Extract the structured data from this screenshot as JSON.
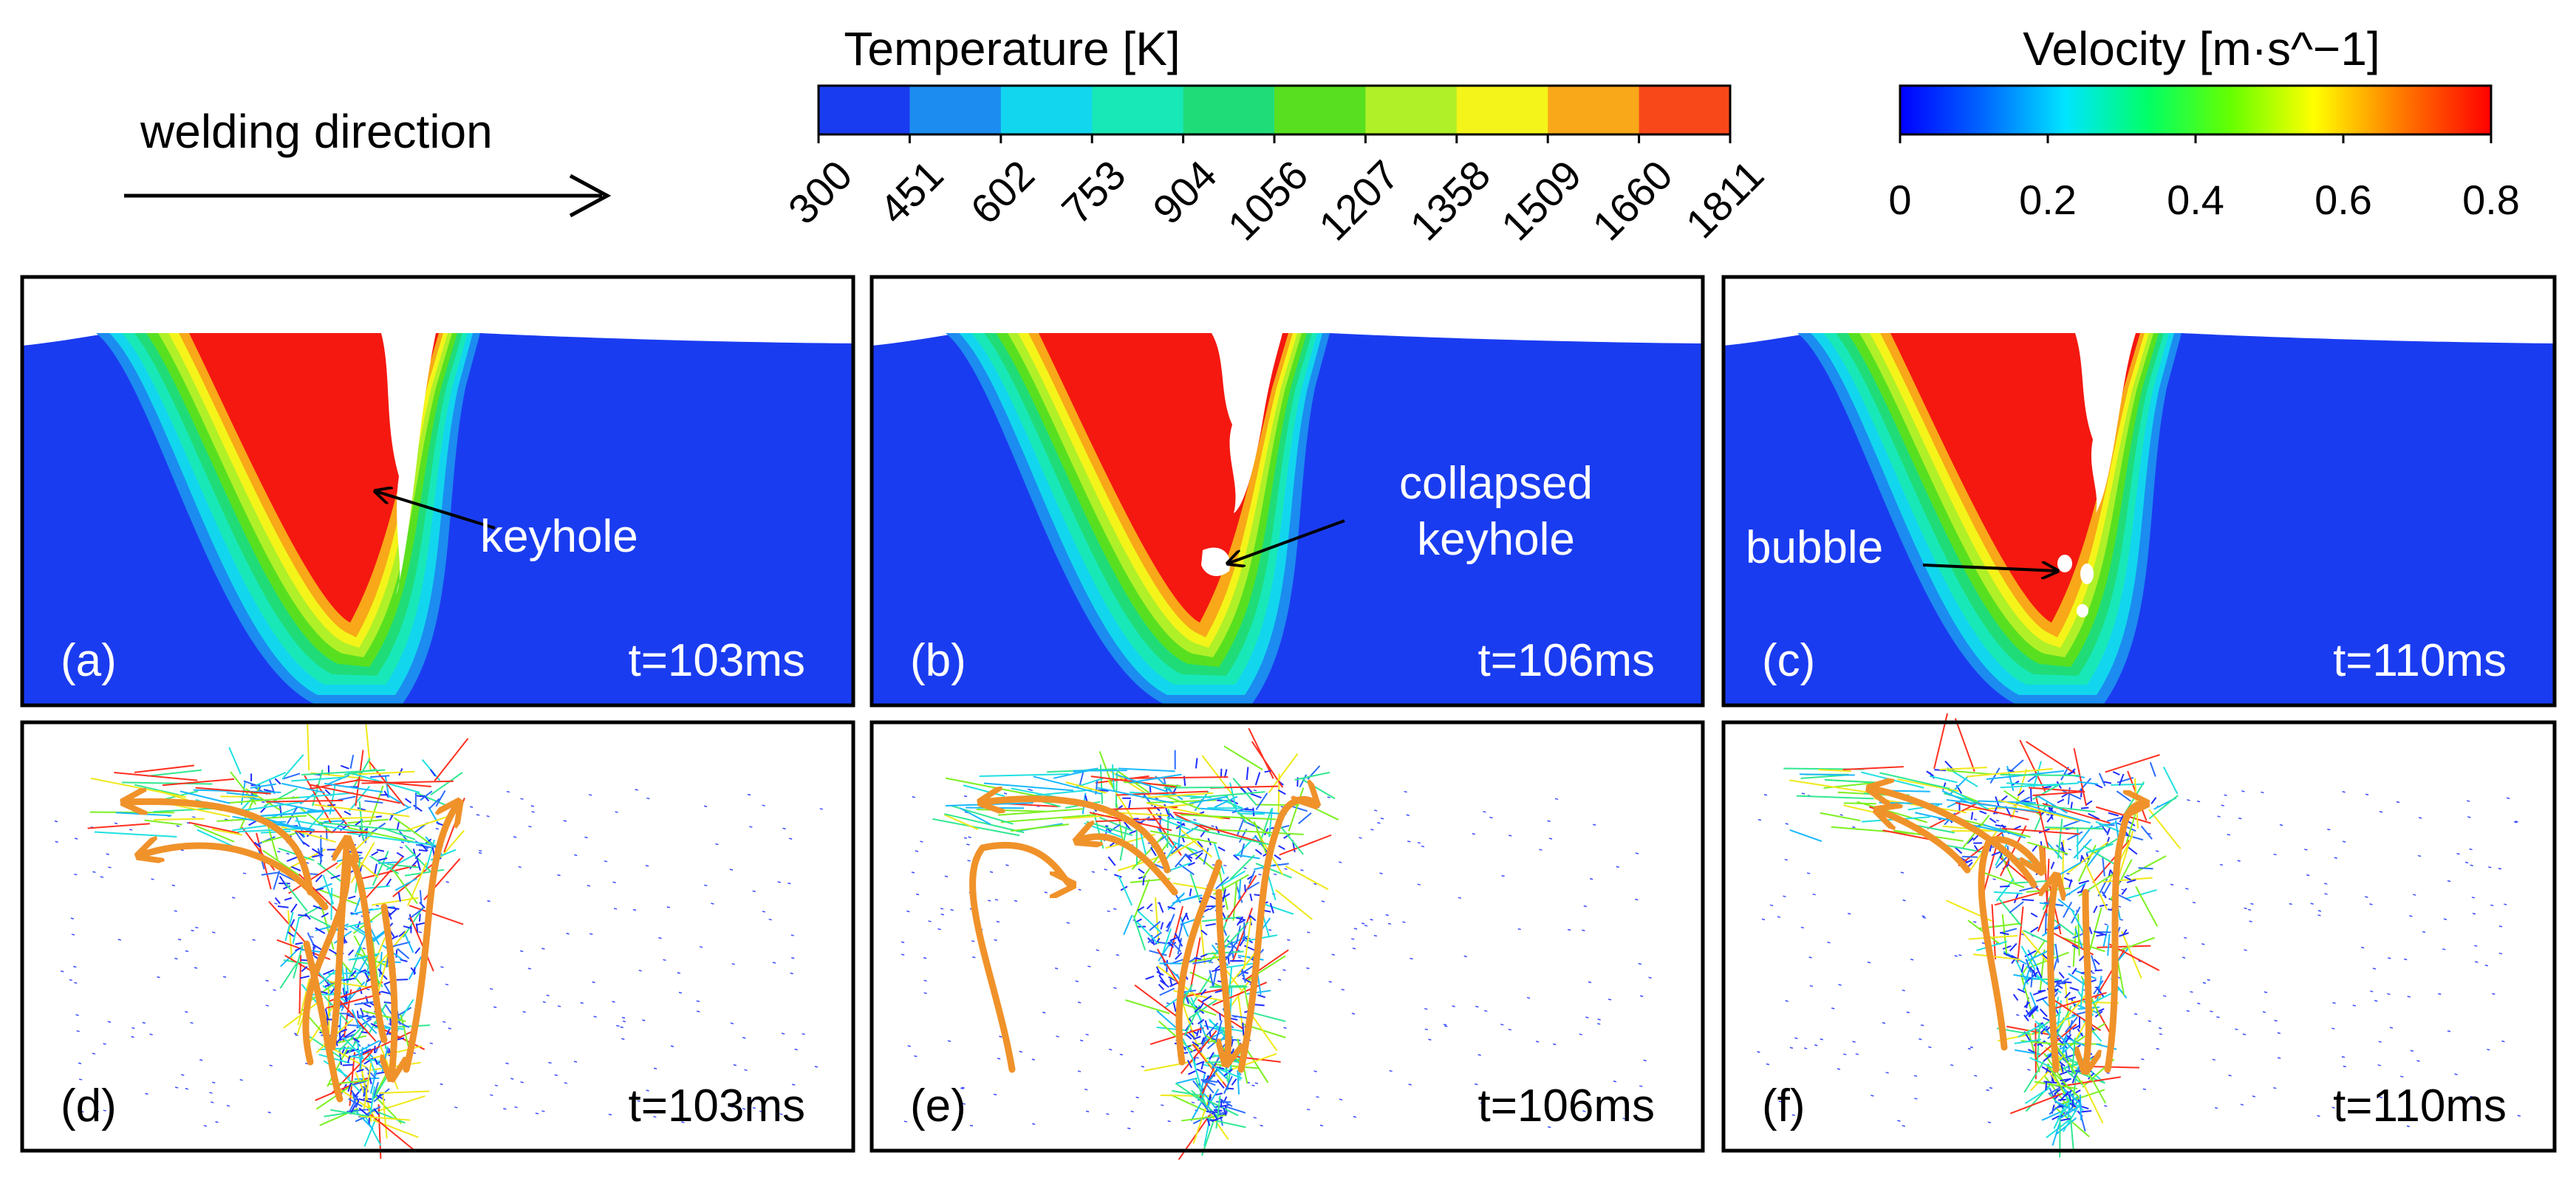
{
  "header": {
    "direction_label": "welding direction"
  },
  "temperature_legend": {
    "title": "Temperature [K]",
    "ticks": [
      "300",
      "451",
      "602",
      "753",
      "904",
      "1056",
      "1207",
      "1358",
      "1509",
      "1660",
      "1811"
    ],
    "colors": [
      "#1a3cf0",
      "#1c8cf0",
      "#12d6ee",
      "#18e8b8",
      "#20dc78",
      "#58e020",
      "#b0f028",
      "#f4f41a",
      "#f8a818",
      "#f8481a"
    ]
  },
  "velocity_legend": {
    "title": "Velocity [m·s^−1]",
    "ticks": [
      "0",
      "0.2",
      "0.4",
      "0.6",
      "0.8"
    ],
    "range": [
      0,
      0.8
    ],
    "gradient": [
      "#0000ff",
      "#0066ff",
      "#00e5ff",
      "#00ff66",
      "#66ff00",
      "#ffff00",
      "#ff7700",
      "#ff0000"
    ]
  },
  "panels": [
    {
      "id": "a",
      "label": "(a)",
      "time": "t=103ms",
      "type": "temperature",
      "annotation": "keyhole"
    },
    {
      "id": "b",
      "label": "(b)",
      "time": "t=106ms",
      "type": "temperature",
      "annotation_lines": [
        "collapsed",
        "keyhole"
      ]
    },
    {
      "id": "c",
      "label": "(c)",
      "time": "t=110ms",
      "type": "temperature",
      "annotation": "bubble"
    },
    {
      "id": "d",
      "label": "(d)",
      "time": "t=103ms",
      "type": "velocity"
    },
    {
      "id": "e",
      "label": "(e)",
      "time": "t=106ms",
      "type": "velocity"
    },
    {
      "id": "f",
      "label": "(f)",
      "time": "t=110ms",
      "type": "velocity"
    }
  ],
  "colors": {
    "solid": "#1a3cf0",
    "melt": "#f41810",
    "flow_arrow": "#f0922a"
  }
}
